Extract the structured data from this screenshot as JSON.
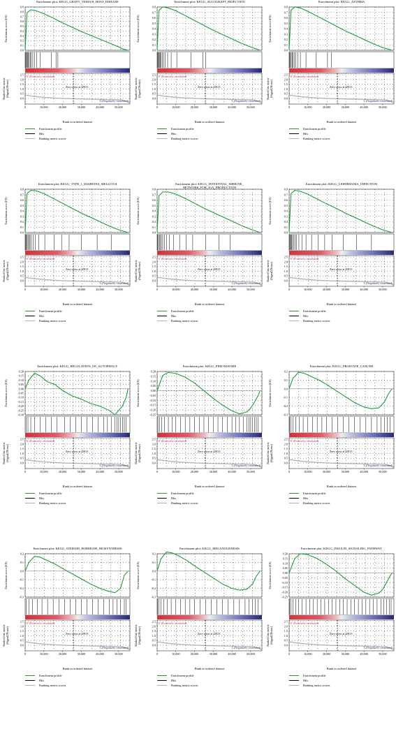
{
  "common": {
    "ylabel_es": "Enrichment score (ES)",
    "ylabel_rank": "Ranked list metric (Signal2Noise)",
    "xlabel": "Rank in ordered dataset",
    "pos_label": "'S' (Positively correlated)",
    "neg_label": "'f' (Negatively correlated)",
    "zero_cross": "Zero cross at 25813",
    "legend": [
      "Enrichment profile",
      "Hits",
      "Ranking metric scores"
    ],
    "x_ticks": [
      "0",
      "10,000",
      "20,000",
      "30,000",
      "40,000",
      "50,000"
    ],
    "rank_ticks": [
      "2.5",
      "2.0",
      "1.5",
      "1.0",
      "0.5",
      "0.0"
    ],
    "colors": {
      "profile": "#1f9b3a",
      "hits": "#000000",
      "metric": "#b0b0b0",
      "pos": "#d0333b",
      "neg": "#2b2f7a"
    }
  },
  "chart_data": [
    {
      "type": "line",
      "title": "Enrichment plot: KEGG_GRAFT_VERSUS_HOST_DISEASE",
      "ylim": [
        0,
        0.9
      ],
      "es_ticks": [
        "0.9",
        "0.8",
        "0.7",
        "0.6",
        "0.5",
        "0.4",
        "0.3",
        "0.2",
        "0.1",
        "0.0"
      ],
      "x": [
        0,
        1000,
        3000,
        6000,
        10000,
        15000,
        20000,
        25000,
        30000,
        35000,
        40000,
        45000,
        50000,
        52000,
        55000
      ],
      "y": [
        0,
        0.78,
        0.84,
        0.82,
        0.76,
        0.67,
        0.57,
        0.48,
        0.39,
        0.31,
        0.23,
        0.15,
        0.07,
        0.03,
        0.0
      ],
      "hits": [
        200,
        500,
        900,
        1300,
        1700,
        2200,
        2700,
        3300,
        4100,
        5000,
        6200,
        8000,
        14000,
        16500,
        17500
      ]
    },
    {
      "type": "line",
      "title": "Enrichment plot: KEGG_ALLOGRAFT_REJECTION",
      "ylim": [
        0,
        0.8
      ],
      "es_ticks": [
        "0.8",
        "0.7",
        "0.6",
        "0.5",
        "0.4",
        "0.3",
        "0.2",
        "0.1",
        "0.0"
      ],
      "x": [
        0,
        1000,
        3000,
        6000,
        10000,
        15000,
        20000,
        25000,
        30000,
        35000,
        40000,
        45000,
        50000,
        55000
      ],
      "y": [
        0,
        0.74,
        0.8,
        0.78,
        0.73,
        0.64,
        0.55,
        0.46,
        0.37,
        0.29,
        0.21,
        0.13,
        0.06,
        0.0
      ],
      "hits": [
        200,
        500,
        800,
        1200,
        1600,
        2100,
        2700,
        3400,
        4300,
        5600,
        7500,
        10500,
        18000,
        24500,
        26000
      ]
    },
    {
      "type": "line",
      "title": "Enrichment plot: KEGG_ASTHMA",
      "ylim": [
        0,
        0.8
      ],
      "es_ticks": [
        "0.8",
        "0.7",
        "0.6",
        "0.5",
        "0.4",
        "0.3",
        "0.2",
        "0.1",
        "0.0"
      ],
      "x": [
        0,
        1000,
        3000,
        6000,
        10000,
        15000,
        20000,
        25000,
        30000,
        35000,
        40000,
        45000,
        50000,
        55000
      ],
      "y": [
        0,
        0.74,
        0.8,
        0.78,
        0.72,
        0.63,
        0.54,
        0.45,
        0.36,
        0.28,
        0.2,
        0.12,
        0.05,
        0.0
      ],
      "hits": [
        300,
        700,
        1100,
        1600,
        2100,
        2700,
        3500,
        4600,
        6000,
        9000,
        14500,
        20500,
        22500
      ]
    },
    {
      "type": "line",
      "title": "Enrichment plot: KEGG_TYPE_1_DIABETES_MELLITUS",
      "ylim": [
        0,
        0.8
      ],
      "es_ticks": [
        "0.8",
        "0.7",
        "0.6",
        "0.5",
        "0.4",
        "0.3",
        "0.2",
        "0.1",
        "0.0"
      ],
      "x": [
        0,
        1000,
        3000,
        6000,
        10000,
        15000,
        20000,
        25000,
        30000,
        35000,
        40000,
        45000,
        50000,
        55000
      ],
      "y": [
        0,
        0.72,
        0.78,
        0.77,
        0.72,
        0.63,
        0.54,
        0.45,
        0.36,
        0.28,
        0.2,
        0.12,
        0.05,
        0.0
      ],
      "hits": [
        200,
        600,
        1000,
        1500,
        2000,
        2600,
        3300,
        4200,
        5500,
        7300,
        10500,
        15500,
        19500,
        23500,
        30000,
        38500,
        46000
      ]
    },
    {
      "type": "line",
      "title": "Enrichment plot: KEGG_INTESTINAL_IMMUNE_ NETWORK_FOR_IGA_PRODUCTION",
      "ylim": [
        0,
        0.8
      ],
      "es_ticks": [
        "0.8",
        "0.7",
        "0.6",
        "0.5",
        "0.4",
        "0.3",
        "0.2",
        "0.1",
        "0.0"
      ],
      "x": [
        0,
        1000,
        3000,
        6000,
        10000,
        15000,
        20000,
        25000,
        30000,
        35000,
        40000,
        45000,
        50000,
        55000
      ],
      "y": [
        0,
        0.68,
        0.75,
        0.75,
        0.71,
        0.63,
        0.54,
        0.45,
        0.37,
        0.29,
        0.21,
        0.13,
        0.06,
        0.0
      ],
      "hits": [
        300,
        700,
        1200,
        1700,
        2300,
        3000,
        3900,
        5000,
        6500,
        8700,
        12000,
        15500,
        19000,
        26000,
        33000,
        39000
      ]
    },
    {
      "type": "line",
      "title": "Enrichment plot: KEGG_LEISHMANIA_INFECTION",
      "ylim": [
        0,
        0.8
      ],
      "es_ticks": [
        "0.8",
        "0.7",
        "0.6",
        "0.5",
        "0.4",
        "0.3",
        "0.2",
        "0.1",
        "0.0"
      ],
      "x": [
        0,
        1000,
        3000,
        6000,
        10000,
        15000,
        20000,
        25000,
        30000,
        35000,
        40000,
        45000,
        50000,
        55000
      ],
      "y": [
        0,
        0.72,
        0.78,
        0.76,
        0.71,
        0.62,
        0.53,
        0.45,
        0.36,
        0.28,
        0.2,
        0.12,
        0.05,
        0.0
      ],
      "hits": [
        200,
        500,
        900,
        1300,
        1800,
        2400,
        3100,
        4000,
        5200,
        6800,
        9000,
        12000,
        15500,
        19000,
        23000,
        29000,
        36000,
        44000
      ]
    },
    {
      "type": "line",
      "title": "Enrichment plot: KEGG_REGULATION_OF_AUTOPHAGY",
      "ylim": [
        -0.3,
        0.2
      ],
      "es_ticks": [
        "0.20",
        "0.15",
        "0.10",
        "0.05",
        "0.00",
        "-0.05",
        "-0.10",
        "-0.15",
        "-0.20",
        "-0.25",
        "-0.30"
      ],
      "x": [
        0,
        2000,
        5000,
        8000,
        12000,
        16000,
        20000,
        25000,
        30000,
        35000,
        40000,
        45000,
        48000,
        50000,
        52000,
        54000,
        55000
      ],
      "y": [
        0,
        0.1,
        0.18,
        0.15,
        0.08,
        0.05,
        -0.02,
        -0.08,
        -0.12,
        -0.17,
        -0.2,
        -0.25,
        -0.3,
        -0.25,
        -0.2,
        -0.1,
        0.0
      ],
      "hits": [
        500,
        1500,
        3000,
        5000,
        8000,
        11000,
        14000,
        17000,
        21000,
        24000,
        27000,
        30000,
        33000,
        36000,
        39000,
        42000,
        44000,
        46000,
        48000,
        49000,
        50000,
        51000,
        52000,
        53000,
        54000
      ]
    },
    {
      "type": "line",
      "title": "Enrichment plot: KEGG_PEROXISOME",
      "ylim": [
        -0.25,
        0.2
      ],
      "es_ticks": [
        "0.20",
        "0.15",
        "0.10",
        "0.05",
        "0.00",
        "-0.05",
        "-0.10",
        "-0.15",
        "-0.20",
        "-0.25"
      ],
      "x": [
        0,
        3000,
        6000,
        10000,
        15000,
        20000,
        25000,
        30000,
        35000,
        40000,
        44000,
        48000,
        50000,
        52000,
        54000,
        55000
      ],
      "y": [
        0,
        0.16,
        0.19,
        0.18,
        0.14,
        0.08,
        0.0,
        -0.08,
        -0.15,
        -0.21,
        -0.24,
        -0.22,
        -0.18,
        -0.12,
        -0.05,
        0.0
      ],
      "hits": [
        400,
        1200,
        2500,
        4000,
        6000,
        8000,
        10000,
        12500,
        15000,
        17500,
        20000,
        22500,
        25000,
        27500,
        30000,
        32500,
        35000,
        37500,
        40000,
        42000,
        44000,
        46000,
        48000,
        49000,
        50000,
        51000,
        52000,
        53000,
        54000
      ]
    },
    {
      "type": "line",
      "title": "Enrichment plot: KEGG_PROSTATE_CANCER",
      "ylim": [
        -0.3,
        0.2
      ],
      "es_ticks": [
        "0.2",
        "0.1",
        "0.0",
        "-0.1",
        "-0.2",
        "-0.3"
      ],
      "x": [
        0,
        2000,
        5000,
        8000,
        12000,
        16000,
        20000,
        25000,
        30000,
        35000,
        40000,
        44000,
        48000,
        51000,
        53000,
        55000
      ],
      "y": [
        0,
        0.12,
        0.19,
        0.18,
        0.14,
        0.1,
        0.05,
        -0.02,
        -0.09,
        -0.16,
        -0.21,
        -0.23,
        -0.22,
        -0.15,
        -0.06,
        0.0
      ],
      "hits": [
        300,
        1000,
        2000,
        3500,
        5500,
        7500,
        10000,
        12500,
        15000,
        17500,
        20000,
        23000,
        26000,
        29000,
        32000,
        35000,
        38000,
        41000,
        44000,
        47000,
        49000,
        51000,
        52500,
        54000
      ]
    },
    {
      "type": "line",
      "title": "Enrichment plot: KEGG_STEROID_HORMONE_BIOSYNTHESIS",
      "ylim": [
        -0.3,
        0.2
      ],
      "es_ticks": [
        "0.2",
        "0.1",
        "0.0",
        "-0.1",
        "-0.2",
        "-0.3"
      ],
      "x": [
        0,
        2000,
        5000,
        8000,
        12000,
        16000,
        20000,
        25000,
        30000,
        35000,
        40000,
        44000,
        48000,
        51000,
        53000,
        55000
      ],
      "y": [
        0,
        0.1,
        0.17,
        0.16,
        0.12,
        0.08,
        0.03,
        -0.03,
        -0.09,
        -0.15,
        -0.2,
        -0.23,
        -0.25,
        -0.2,
        -0.05,
        0.0
      ],
      "hits": [
        500,
        2000,
        4000,
        6500,
        9000,
        12000,
        15000,
        18000,
        21000,
        24000,
        27000,
        30000,
        33000,
        36000,
        39000,
        42000,
        45000,
        47000,
        49000,
        51000,
        53000,
        54000
      ]
    },
    {
      "type": "line",
      "title": "Enrichment plot: KEGG_MELANOGENESIS",
      "ylim": [
        -0.3,
        0.2
      ],
      "es_ticks": [
        "0.2",
        "0.1",
        "0.0",
        "-0.1",
        "-0.2",
        "-0.3"
      ],
      "x": [
        0,
        2000,
        5000,
        8000,
        12000,
        16000,
        20000,
        25000,
        30000,
        35000,
        40000,
        44000,
        48000,
        51000,
        53000,
        55000
      ],
      "y": [
        0,
        0.14,
        0.22,
        0.21,
        0.17,
        0.12,
        0.06,
        -0.01,
        -0.08,
        -0.15,
        -0.2,
        -0.22,
        -0.21,
        -0.15,
        -0.06,
        0.0
      ],
      "hits": [
        300,
        1000,
        2000,
        3500,
        5500,
        7500,
        10000,
        12500,
        15000,
        17500,
        20000,
        23000,
        26000,
        29000,
        32000,
        35000,
        38000,
        41000,
        44000,
        47000,
        49000,
        51000,
        52500,
        54000
      ]
    },
    {
      "type": "line",
      "title": "Enrichment plot: KEGG_INSULIN_SIGNALING_PATHWAY",
      "ylim": [
        -0.25,
        0.2
      ],
      "es_ticks": [
        "0.20",
        "0.15",
        "0.10",
        "0.05",
        "0.00",
        "-0.05",
        "-0.10",
        "-0.15",
        "-0.20",
        "-0.25"
      ],
      "x": [
        0,
        3000,
        6000,
        10000,
        15000,
        20000,
        25000,
        30000,
        35000,
        40000,
        44000,
        48000,
        50000,
        52000,
        54000,
        55000
      ],
      "y": [
        0,
        0.15,
        0.2,
        0.19,
        0.15,
        0.09,
        0.02,
        -0.06,
        -0.13,
        -0.2,
        -0.23,
        -0.21,
        -0.17,
        -0.1,
        -0.03,
        0.0
      ],
      "hits": [
        300,
        1000,
        2000,
        3500,
        5000,
        7000,
        9000,
        11000,
        13000,
        15000,
        17000,
        19000,
        21000,
        23000,
        25000,
        27000,
        29000,
        31000,
        33000,
        35000,
        37000,
        39000,
        41000,
        43000,
        45000,
        47000,
        49000,
        50500,
        52000,
        53500,
        54500
      ]
    }
  ]
}
